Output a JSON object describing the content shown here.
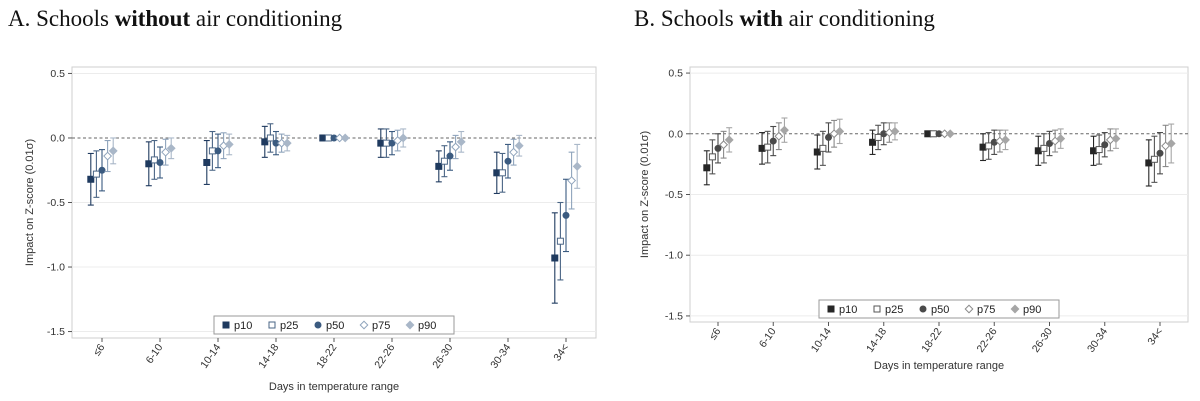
{
  "panels": [
    {
      "title_prefix": "A. Schools ",
      "title_bold": "without",
      "title_suffix": " air conditioning"
    },
    {
      "title_prefix": "B. Schools ",
      "title_bold": "with",
      "title_suffix": " air conditioning"
    }
  ],
  "chart_data": [
    {
      "type": "scatter",
      "subtype": "point-estimates-with-confidence-intervals",
      "title": "A. Schools without air conditioning",
      "xlabel": "Days in temperature range",
      "ylabel": "Impact on Z-score (0.01σ)",
      "categories": [
        "≤6",
        "6-10",
        "10-14",
        "14-18",
        "18-22",
        "22-26",
        "26-30",
        "30-34",
        "34<"
      ],
      "ylim": [
        -1.55,
        0.55
      ],
      "yticks": [
        0.5,
        0.0,
        -0.5,
        -1.0,
        -1.5
      ],
      "ytick_labels": [
        "0.5",
        "0.0",
        "-0.5",
        "-1.0",
        "-1.5"
      ],
      "reference_line": 0,
      "legend_position": "bottom",
      "series": [
        {
          "name": "p10",
          "color": "#1f3a5f",
          "marker": "square-filled",
          "values": [
            -0.32,
            -0.2,
            -0.19,
            -0.03,
            0.0,
            -0.04,
            -0.22,
            -0.27,
            -0.93
          ],
          "ci_low": [
            -0.52,
            -0.37,
            -0.36,
            -0.15,
            0.0,
            -0.15,
            -0.34,
            -0.43,
            -1.28
          ],
          "ci_high": [
            -0.12,
            -0.03,
            -0.02,
            0.09,
            0.0,
            0.07,
            -0.1,
            -0.11,
            -0.58
          ]
        },
        {
          "name": "p25",
          "color": "#4a6585",
          "marker": "square-hollow",
          "values": [
            -0.28,
            -0.17,
            -0.1,
            0.0,
            0.0,
            -0.04,
            -0.18,
            -0.27,
            -0.8
          ],
          "ci_low": [
            -0.46,
            -0.32,
            -0.25,
            -0.11,
            0.0,
            -0.15,
            -0.3,
            -0.42,
            -1.1
          ],
          "ci_high": [
            -0.1,
            -0.02,
            0.05,
            0.11,
            0.0,
            0.07,
            -0.06,
            -0.12,
            -0.5
          ]
        },
        {
          "name": "p50",
          "color": "#3b5b80",
          "marker": "circle-filled",
          "values": [
            -0.25,
            -0.19,
            -0.1,
            -0.04,
            0.0,
            -0.04,
            -0.14,
            -0.18,
            -0.6
          ],
          "ci_low": [
            -0.41,
            -0.31,
            -0.23,
            -0.13,
            0.0,
            -0.13,
            -0.25,
            -0.31,
            -0.88
          ],
          "ci_high": [
            -0.09,
            -0.07,
            0.03,
            0.05,
            0.0,
            0.05,
            -0.03,
            -0.05,
            -0.32
          ]
        },
        {
          "name": "p75",
          "color": "#8fa4bc",
          "marker": "diamond-hollow",
          "values": [
            -0.14,
            -0.11,
            -0.06,
            -0.04,
            0.0,
            -0.02,
            -0.07,
            -0.11,
            -0.33
          ],
          "ci_low": [
            -0.26,
            -0.21,
            -0.16,
            -0.11,
            0.0,
            -0.1,
            -0.16,
            -0.21,
            -0.55
          ],
          "ci_high": [
            -0.02,
            -0.01,
            0.04,
            0.03,
            0.0,
            0.06,
            0.02,
            -0.01,
            -0.11
          ]
        },
        {
          "name": "p90",
          "color": "#a9b7c8",
          "marker": "diamond-filled",
          "values": [
            -0.1,
            -0.08,
            -0.05,
            -0.04,
            0.0,
            0.0,
            -0.03,
            -0.06,
            -0.22
          ],
          "ci_low": [
            -0.2,
            -0.16,
            -0.13,
            -0.1,
            0.0,
            -0.07,
            -0.11,
            -0.14,
            -0.39
          ],
          "ci_high": [
            0.0,
            0.0,
            0.03,
            0.02,
            0.0,
            0.07,
            0.05,
            0.02,
            -0.05
          ]
        }
      ]
    },
    {
      "type": "scatter",
      "subtype": "point-estimates-with-confidence-intervals",
      "title": "B. Schools with air conditioning",
      "xlabel": "Days in temperature range",
      "ylabel": "Impact on Z-score (0.01σ)",
      "categories": [
        "≤6",
        "6-10",
        "10-14",
        "14-18",
        "18-22",
        "22-26",
        "26-30",
        "30-34",
        "34<"
      ],
      "ylim": [
        -1.55,
        0.55
      ],
      "yticks": [
        0.5,
        0.0,
        -0.5,
        -1.0,
        -1.5
      ],
      "ytick_labels": [
        "0.5",
        "0.0",
        "-0.5",
        "-1.0",
        "-1.5"
      ],
      "reference_line": 0,
      "legend_position": "bottom",
      "series": [
        {
          "name": "p10",
          "color": "#262626",
          "marker": "square-filled",
          "values": [
            -0.28,
            -0.12,
            -0.15,
            -0.07,
            0.0,
            -0.11,
            -0.14,
            -0.14,
            -0.24
          ],
          "ci_low": [
            -0.42,
            -0.25,
            -0.29,
            -0.17,
            0.0,
            -0.22,
            -0.26,
            -0.26,
            -0.43
          ],
          "ci_high": [
            -0.14,
            0.01,
            -0.01,
            0.03,
            0.0,
            0.0,
            -0.02,
            -0.02,
            -0.05
          ]
        },
        {
          "name": "p25",
          "color": "#555555",
          "marker": "square-hollow",
          "values": [
            -0.19,
            -0.11,
            -0.12,
            -0.03,
            0.0,
            -0.1,
            -0.12,
            -0.13,
            -0.21
          ],
          "ci_low": [
            -0.33,
            -0.24,
            -0.26,
            -0.13,
            0.0,
            -0.21,
            -0.24,
            -0.25,
            -0.4
          ],
          "ci_high": [
            -0.05,
            0.02,
            0.02,
            0.07,
            0.0,
            0.01,
            0.0,
            -0.01,
            -0.02
          ]
        },
        {
          "name": "p50",
          "color": "#4a4a4a",
          "marker": "circle-filled",
          "values": [
            -0.12,
            -0.06,
            -0.03,
            0.0,
            0.0,
            -0.07,
            -0.08,
            -0.09,
            -0.16
          ],
          "ci_low": [
            -0.24,
            -0.18,
            -0.15,
            -0.09,
            0.0,
            -0.17,
            -0.18,
            -0.19,
            -0.33
          ],
          "ci_high": [
            0.0,
            0.06,
            0.09,
            0.09,
            0.0,
            0.03,
            0.02,
            0.01,
            0.01
          ]
        },
        {
          "name": "p75",
          "color": "#8a8a8a",
          "marker": "diamond-hollow",
          "values": [
            -0.09,
            -0.02,
            0.0,
            0.01,
            0.0,
            -0.06,
            -0.06,
            -0.05,
            -0.1
          ],
          "ci_low": [
            -0.2,
            -0.13,
            -0.11,
            -0.07,
            0.0,
            -0.15,
            -0.15,
            -0.14,
            -0.27
          ],
          "ci_high": [
            0.02,
            0.09,
            0.11,
            0.09,
            0.0,
            0.03,
            0.03,
            0.04,
            0.07
          ]
        },
        {
          "name": "p90",
          "color": "#a6a6a6",
          "marker": "diamond-filled",
          "values": [
            -0.05,
            0.03,
            0.02,
            0.02,
            0.0,
            -0.05,
            -0.04,
            -0.04,
            -0.08
          ],
          "ci_low": [
            -0.15,
            -0.07,
            -0.08,
            -0.05,
            0.0,
            -0.13,
            -0.12,
            -0.12,
            -0.24
          ],
          "ci_high": [
            0.05,
            0.13,
            0.12,
            0.09,
            0.0,
            0.03,
            0.04,
            0.04,
            0.08
          ]
        }
      ]
    }
  ]
}
